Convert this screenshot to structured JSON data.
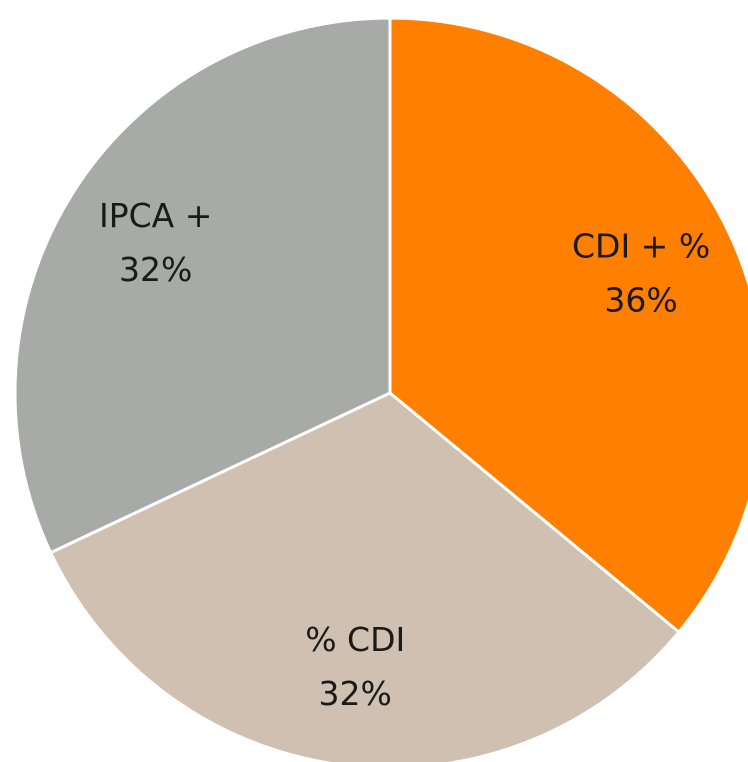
{
  "chart_data": {
    "type": "pie",
    "categories": [
      "CDI + %",
      "% CDI",
      "IPCA +"
    ],
    "values": [
      36,
      32,
      32
    ],
    "value_labels": [
      "36%",
      "32%",
      "32%"
    ],
    "colors": [
      "#ff7f00",
      "#cfc0b1",
      "#a8aaa7"
    ]
  }
}
